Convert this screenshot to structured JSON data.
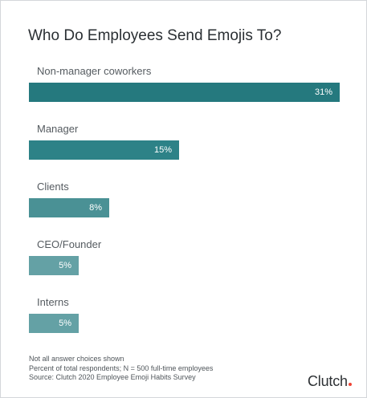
{
  "chart_data": {
    "type": "bar",
    "orientation": "horizontal",
    "title": "Who Do Employees Send Emojis To?",
    "categories": [
      "Non-manager coworkers",
      "Manager",
      "Clients",
      "CEO/Founder",
      "Interns"
    ],
    "values": [
      31,
      15,
      8,
      5,
      5
    ],
    "value_labels": [
      "31%",
      "15%",
      "8%",
      "5%",
      "5%"
    ],
    "colors": [
      "#25797e",
      "#2d8287",
      "#4a9195",
      "#64a1a5",
      "#64a1a5"
    ],
    "xlim": [
      0,
      31
    ],
    "grid": false,
    "legend": "none"
  },
  "footnotes": [
    "Not all answer choices shown",
    "Percent of total respondents; N = 500 full-time employees",
    "Source: Clutch 2020 Employee Emoji Habits Survey"
  ],
  "brand": {
    "name": "Clutch",
    "dot_color": "#ef4335"
  }
}
